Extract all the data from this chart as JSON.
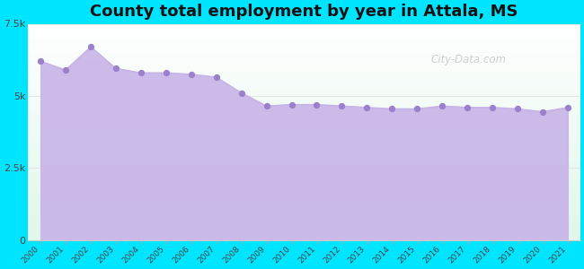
{
  "title": "County total employment by year in Attala, MS",
  "title_fontsize": 13,
  "title_fontweight": "bold",
  "years": [
    2000,
    2001,
    2002,
    2003,
    2004,
    2005,
    2006,
    2007,
    2008,
    2009,
    2010,
    2011,
    2012,
    2013,
    2014,
    2015,
    2016,
    2017,
    2018,
    2019,
    2020,
    2021
  ],
  "values": [
    6200,
    5900,
    6700,
    5950,
    5800,
    5800,
    5750,
    5650,
    5100,
    4650,
    4700,
    4700,
    4650,
    4600,
    4550,
    4550,
    4650,
    4600,
    4600,
    4550,
    4450,
    4600
  ],
  "line_color": "#c8b4e8",
  "fill_color": "#c8b4e8",
  "fill_alpha": 0.9,
  "marker_color": "#9b80cc",
  "marker_size": 18,
  "bg_color": "#00e5ff",
  "ylim": [
    0,
    7500
  ],
  "yticks": [
    0,
    2500,
    5000,
    7500
  ],
  "ytick_labels": [
    "0",
    "2.5k",
    "5k",
    "7.5k"
  ],
  "watermark_text": "City-Data.com",
  "watermark_color": "#aaaaaa",
  "watermark_alpha": 0.55,
  "spine_color": "#cccccc",
  "plot_bg_top": "#e8f5f0",
  "plot_bg_bottom": "#ffffff"
}
